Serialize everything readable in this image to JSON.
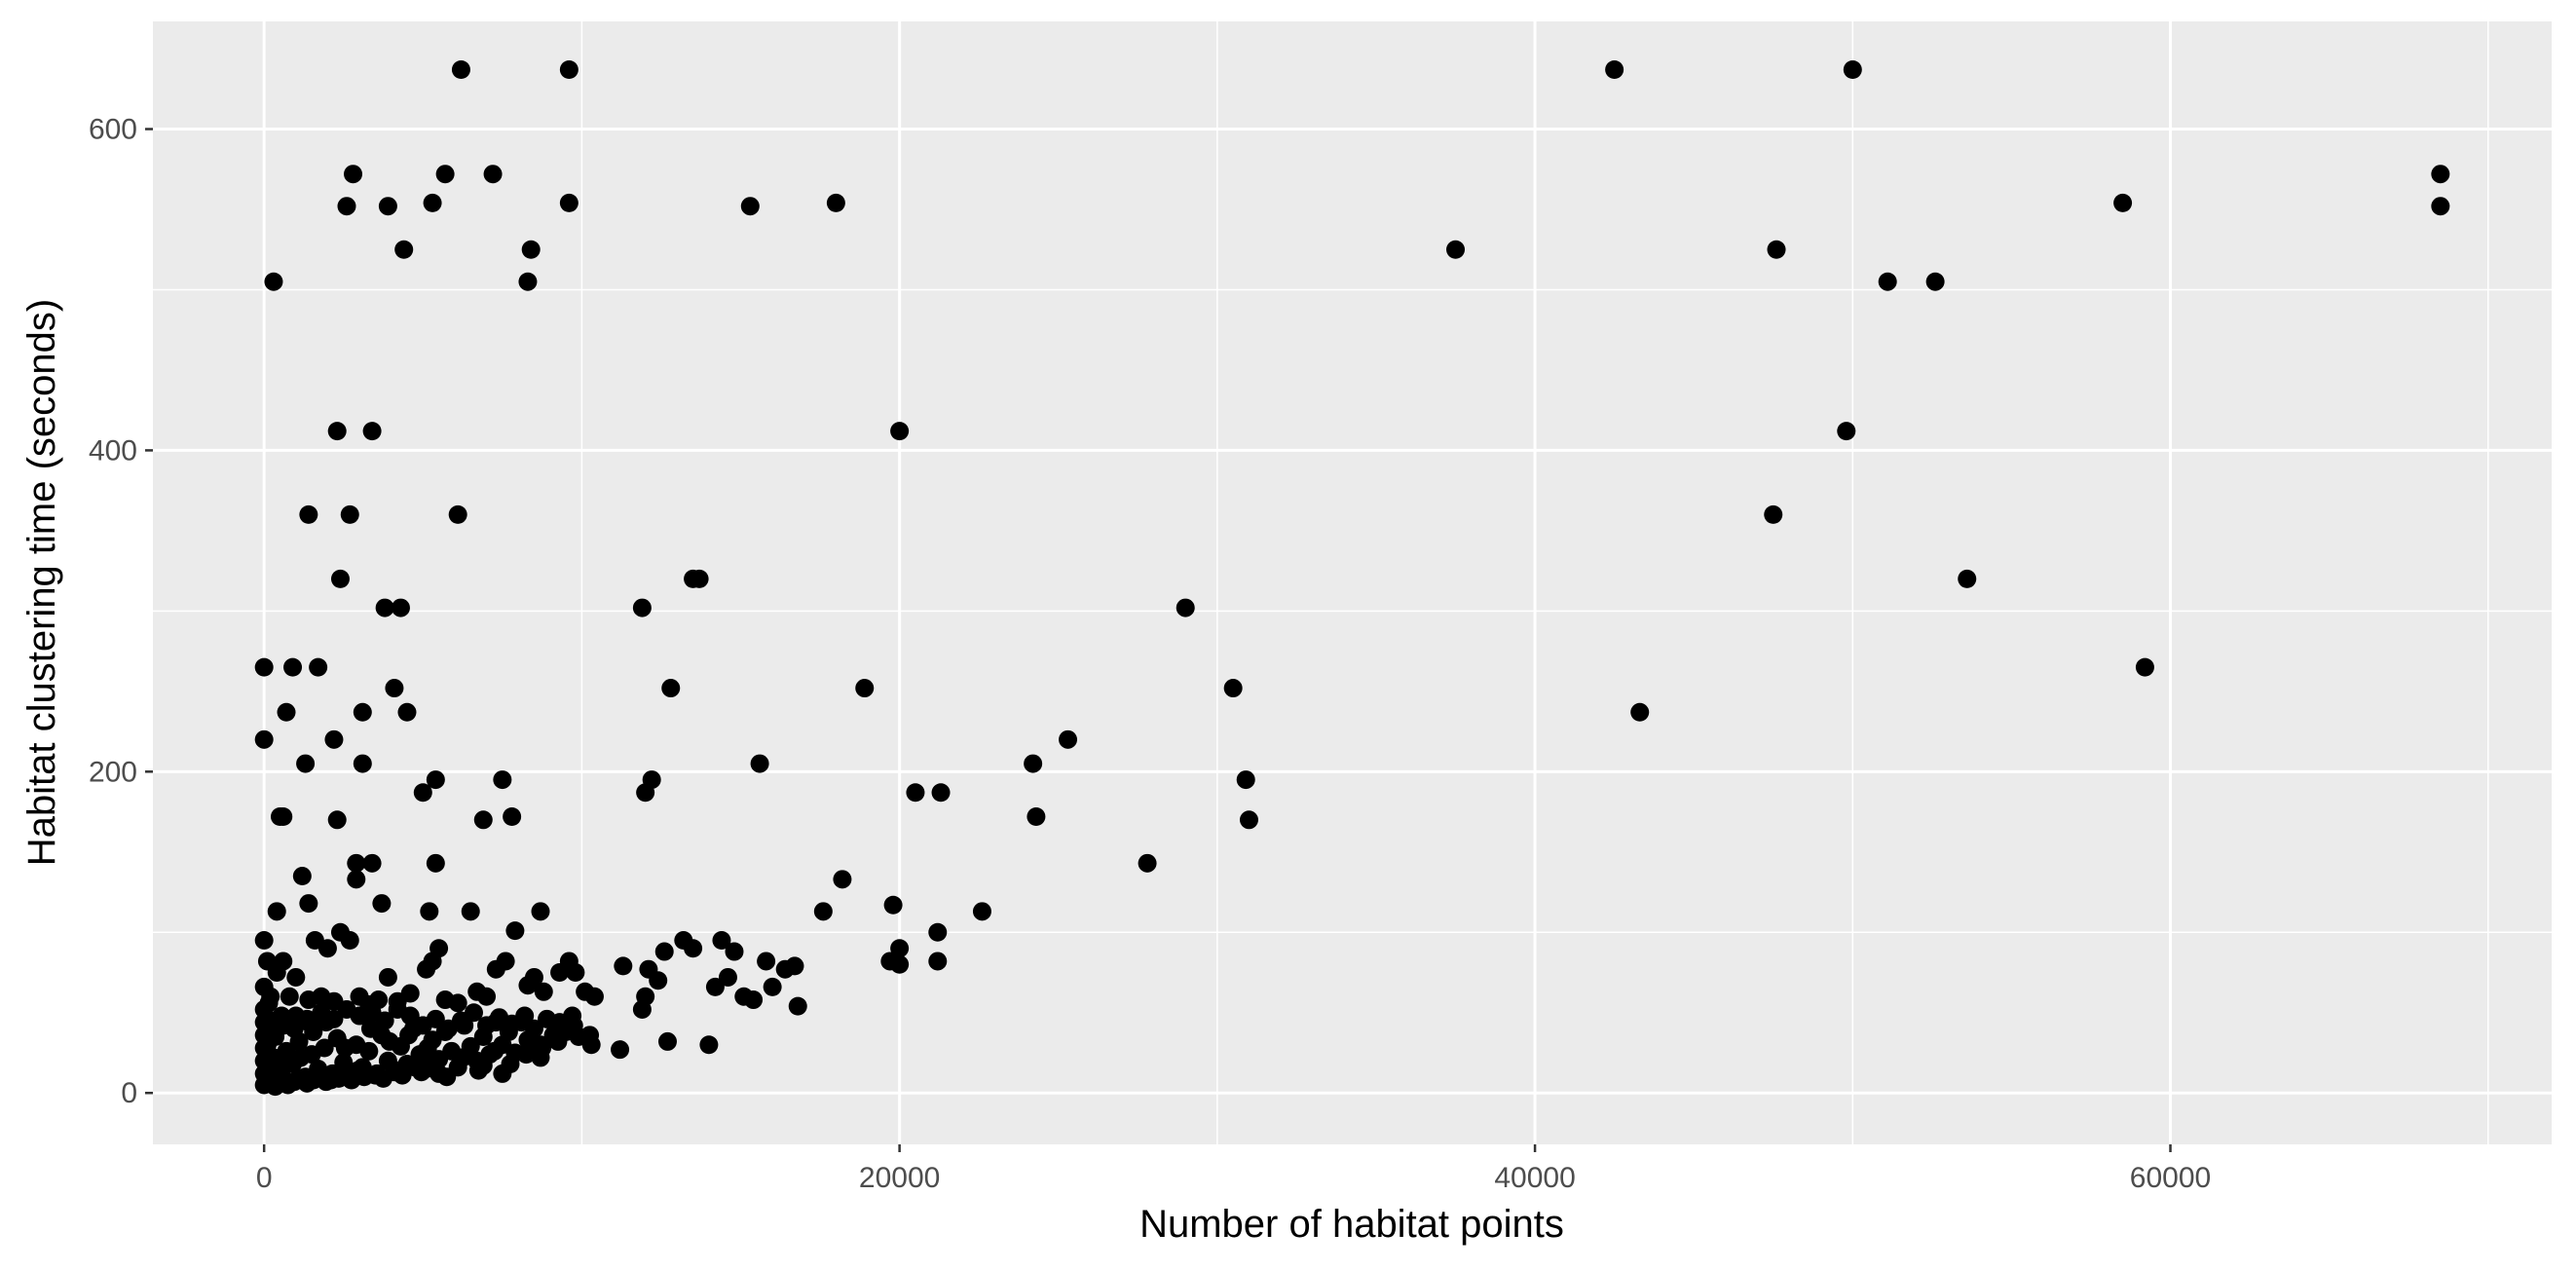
{
  "chart_data": {
    "type": "scatter",
    "xlabel": "Number of habitat points",
    "ylabel": "Habitat clustering time (seconds)",
    "xlim": [
      -3500,
      72000
    ],
    "ylim": [
      -32,
      667
    ],
    "x_ticks": [
      0,
      20000,
      40000,
      60000
    ],
    "x_tick_labels": [
      "0",
      "20000",
      "40000",
      "60000"
    ],
    "y_ticks": [
      0,
      200,
      400,
      600
    ],
    "y_tick_labels": [
      "0",
      "200",
      "400",
      "600"
    ],
    "grid": true,
    "legend": "none",
    "colors": {
      "panel": "#ebebeb",
      "grid": "#ffffff",
      "point": "#000000",
      "tick_text": "#4d4d4d",
      "title_text": "#000000"
    },
    "series": [
      {
        "points": [
          [
            0,
            265
          ],
          [
            0,
            220
          ],
          [
            300,
            505
          ],
          [
            400,
            113
          ],
          [
            500,
            172
          ],
          [
            600,
            172
          ],
          [
            700,
            237
          ],
          [
            900,
            265
          ],
          [
            1300,
            205
          ],
          [
            1400,
            118
          ],
          [
            1400,
            360
          ],
          [
            1700,
            265
          ],
          [
            2200,
            220
          ],
          [
            2300,
            170
          ],
          [
            2300,
            412
          ],
          [
            2400,
            320
          ],
          [
            2600,
            552
          ],
          [
            2700,
            360
          ],
          [
            2800,
            572
          ],
          [
            2900,
            143
          ],
          [
            2900,
            133
          ],
          [
            3100,
            237
          ],
          [
            3100,
            205
          ],
          [
            3400,
            143
          ],
          [
            3400,
            412
          ],
          [
            3700,
            118
          ],
          [
            3800,
            302
          ],
          [
            3900,
            552
          ],
          [
            4100,
            252
          ],
          [
            4300,
            302
          ],
          [
            4400,
            525
          ],
          [
            4500,
            237
          ],
          [
            5000,
            187
          ],
          [
            5200,
            113
          ],
          [
            5300,
            554
          ],
          [
            5400,
            195
          ],
          [
            5400,
            143
          ],
          [
            5700,
            572
          ],
          [
            6100,
            360
          ],
          [
            6200,
            637
          ],
          [
            6500,
            113
          ],
          [
            6900,
            170
          ],
          [
            7200,
            572
          ],
          [
            7500,
            195
          ],
          [
            7800,
            172
          ],
          [
            8300,
            505
          ],
          [
            8400,
            525
          ],
          [
            8700,
            113
          ],
          [
            9600,
            637
          ],
          [
            9600,
            554
          ],
          [
            11900,
            302
          ],
          [
            12000,
            187
          ],
          [
            12200,
            195
          ],
          [
            12800,
            252
          ],
          [
            13500,
            320
          ],
          [
            13700,
            320
          ],
          [
            15300,
            552
          ],
          [
            15600,
            205
          ],
          [
            18000,
            554
          ],
          [
            18200,
            133
          ],
          [
            18900,
            252
          ],
          [
            19800,
            117
          ],
          [
            20000,
            412
          ],
          [
            20500,
            187
          ],
          [
            21300,
            187
          ],
          [
            21200,
            100
          ],
          [
            21200,
            82
          ],
          [
            22600,
            113
          ],
          [
            24200,
            205
          ],
          [
            24300,
            172
          ],
          [
            25300,
            220
          ],
          [
            27800,
            143
          ],
          [
            29000,
            302
          ],
          [
            30500,
            252
          ],
          [
            30900,
            195
          ],
          [
            31000,
            170
          ],
          [
            37500,
            525
          ],
          [
            42500,
            637
          ],
          [
            43300,
            237
          ],
          [
            47500,
            360
          ],
          [
            47600,
            525
          ],
          [
            49800,
            412
          ],
          [
            50000,
            637
          ],
          [
            51100,
            505
          ],
          [
            52600,
            505
          ],
          [
            53600,
            320
          ],
          [
            58500,
            554
          ],
          [
            59200,
            265
          ],
          [
            68500,
            572
          ],
          [
            68500,
            552
          ],
          [
            0,
            95
          ],
          [
            100,
            82
          ],
          [
            200,
            60
          ],
          [
            400,
            75
          ],
          [
            600,
            82
          ],
          [
            800,
            60
          ],
          [
            1000,
            72
          ],
          [
            1200,
            135
          ],
          [
            1400,
            58
          ],
          [
            1600,
            95
          ],
          [
            1800,
            60
          ],
          [
            2000,
            90
          ],
          [
            2200,
            57
          ],
          [
            2400,
            100
          ],
          [
            2700,
            95
          ],
          [
            3000,
            60
          ],
          [
            3300,
            55
          ],
          [
            3600,
            58
          ],
          [
            3900,
            72
          ],
          [
            4200,
            57
          ],
          [
            4600,
            62
          ],
          [
            5100,
            77
          ],
          [
            5300,
            82
          ],
          [
            5500,
            90
          ],
          [
            5700,
            58
          ],
          [
            6100,
            56
          ],
          [
            6700,
            63
          ],
          [
            7000,
            60
          ],
          [
            7300,
            77
          ],
          [
            7600,
            82
          ],
          [
            7900,
            101
          ],
          [
            8300,
            67
          ],
          [
            8500,
            72
          ],
          [
            8800,
            63
          ],
          [
            9300,
            75
          ],
          [
            9600,
            82
          ],
          [
            9800,
            75
          ],
          [
            10100,
            63
          ],
          [
            10400,
            60
          ],
          [
            11300,
            79
          ],
          [
            11900,
            52
          ],
          [
            12000,
            60
          ],
          [
            12100,
            77
          ],
          [
            12400,
            70
          ],
          [
            12600,
            88
          ],
          [
            13200,
            95
          ],
          [
            13500,
            90
          ],
          [
            14200,
            66
          ],
          [
            14400,
            95
          ],
          [
            14600,
            72
          ],
          [
            14800,
            88
          ],
          [
            15100,
            60
          ],
          [
            15400,
            58
          ],
          [
            15800,
            82
          ],
          [
            16000,
            66
          ],
          [
            16400,
            77
          ],
          [
            16700,
            79
          ],
          [
            16800,
            54
          ],
          [
            17600,
            113
          ],
          [
            19700,
            82
          ],
          [
            20000,
            90
          ],
          [
            20000,
            80
          ],
          [
            11200,
            27
          ],
          [
            10300,
            30
          ],
          [
            12700,
            32
          ],
          [
            14000,
            30
          ],
          [
            8700,
            22
          ],
          [
            7500,
            12
          ],
          [
            6900,
            17
          ],
          [
            5500,
            12
          ],
          [
            100,
            30
          ],
          [
            300,
            22
          ],
          [
            500,
            12
          ],
          [
            700,
            26
          ],
          [
            900,
            18
          ],
          [
            1100,
            32
          ],
          [
            1300,
            10
          ],
          [
            1500,
            24
          ],
          [
            1700,
            15
          ],
          [
            1900,
            28
          ],
          [
            2100,
            8
          ],
          [
            2300,
            34
          ],
          [
            2500,
            19
          ],
          [
            2700,
            12
          ],
          [
            2900,
            30
          ],
          [
            3100,
            16
          ],
          [
            3300,
            26
          ],
          [
            3500,
            11
          ],
          [
            3700,
            36
          ],
          [
            3900,
            20
          ],
          [
            4100,
            13
          ],
          [
            4300,
            29
          ],
          [
            4500,
            18
          ],
          [
            4700,
            40
          ],
          [
            4900,
            24
          ],
          [
            5100,
            15
          ],
          [
            5300,
            33
          ],
          [
            5500,
            21
          ],
          [
            5700,
            38
          ],
          [
            5900,
            26
          ],
          [
            6100,
            16
          ],
          [
            6300,
            42
          ],
          [
            6500,
            29
          ],
          [
            6700,
            20
          ],
          [
            6900,
            35
          ],
          [
            7100,
            24
          ],
          [
            7300,
            44
          ],
          [
            7500,
            30
          ],
          [
            7700,
            38
          ],
          [
            7900,
            25
          ],
          [
            8100,
            44
          ],
          [
            8300,
            33
          ],
          [
            8500,
            40
          ],
          [
            8700,
            30
          ],
          [
            8900,
            46
          ],
          [
            9100,
            36
          ],
          [
            9300,
            44
          ],
          [
            9500,
            38
          ],
          [
            9700,
            48
          ],
          [
            9900,
            35
          ],
          [
            200,
            45
          ],
          [
            600,
            42
          ],
          [
            1000,
            48
          ],
          [
            1400,
            44
          ],
          [
            1800,
            50
          ],
          [
            2200,
            46
          ],
          [
            2600,
            52
          ],
          [
            3000,
            48
          ],
          [
            3400,
            50
          ],
          [
            3800,
            45
          ],
          [
            4200,
            52
          ],
          [
            4600,
            48
          ],
          [
            5000,
            42
          ],
          [
            5400,
            46
          ],
          [
            5800,
            40
          ],
          [
            6200,
            45
          ],
          [
            6600,
            50
          ],
          [
            7000,
            42
          ],
          [
            7400,
            47
          ],
          [
            7800,
            43
          ],
          [
            8200,
            48
          ],
          [
            0,
            5
          ],
          [
            0,
            12
          ],
          [
            0,
            20
          ],
          [
            0,
            28
          ],
          [
            0,
            36
          ],
          [
            0,
            44
          ],
          [
            0,
            52
          ],
          [
            0,
            66
          ],
          [
            150,
            8
          ],
          [
            150,
            16
          ],
          [
            150,
            40
          ],
          [
            150,
            56
          ],
          [
            350,
            4
          ],
          [
            350,
            10
          ],
          [
            350,
            18
          ],
          [
            350,
            35
          ],
          [
            550,
            6
          ],
          [
            550,
            14
          ],
          [
            550,
            48
          ],
          [
            750,
            5
          ],
          [
            750,
            20
          ],
          [
            950,
            7
          ],
          [
            950,
            40
          ],
          [
            1150,
            9
          ],
          [
            1150,
            22
          ],
          [
            1350,
            6
          ],
          [
            1350,
            46
          ],
          [
            1550,
            8
          ],
          [
            1550,
            38
          ],
          [
            1750,
            10
          ],
          [
            1950,
            7
          ],
          [
            1950,
            44
          ],
          [
            2150,
            12
          ],
          [
            2350,
            9
          ],
          [
            2550,
            28
          ],
          [
            2750,
            8
          ],
          [
            2950,
            14
          ],
          [
            3150,
            10
          ],
          [
            3350,
            40
          ],
          [
            3550,
            12
          ],
          [
            3750,
            9
          ],
          [
            3950,
            32
          ],
          [
            4150,
            14
          ],
          [
            4350,
            11
          ],
          [
            4550,
            36
          ],
          [
            4750,
            16
          ],
          [
            4950,
            13
          ],
          [
            5150,
            28
          ],
          [
            5350,
            18
          ],
          [
            5750,
            10
          ],
          [
            6250,
            22
          ],
          [
            6750,
            14
          ],
          [
            7250,
            26
          ],
          [
            7750,
            18
          ],
          [
            8250,
            24
          ],
          [
            8750,
            28
          ],
          [
            9250,
            32
          ],
          [
            9750,
            42
          ],
          [
            10250,
            36
          ]
        ]
      }
    ]
  }
}
